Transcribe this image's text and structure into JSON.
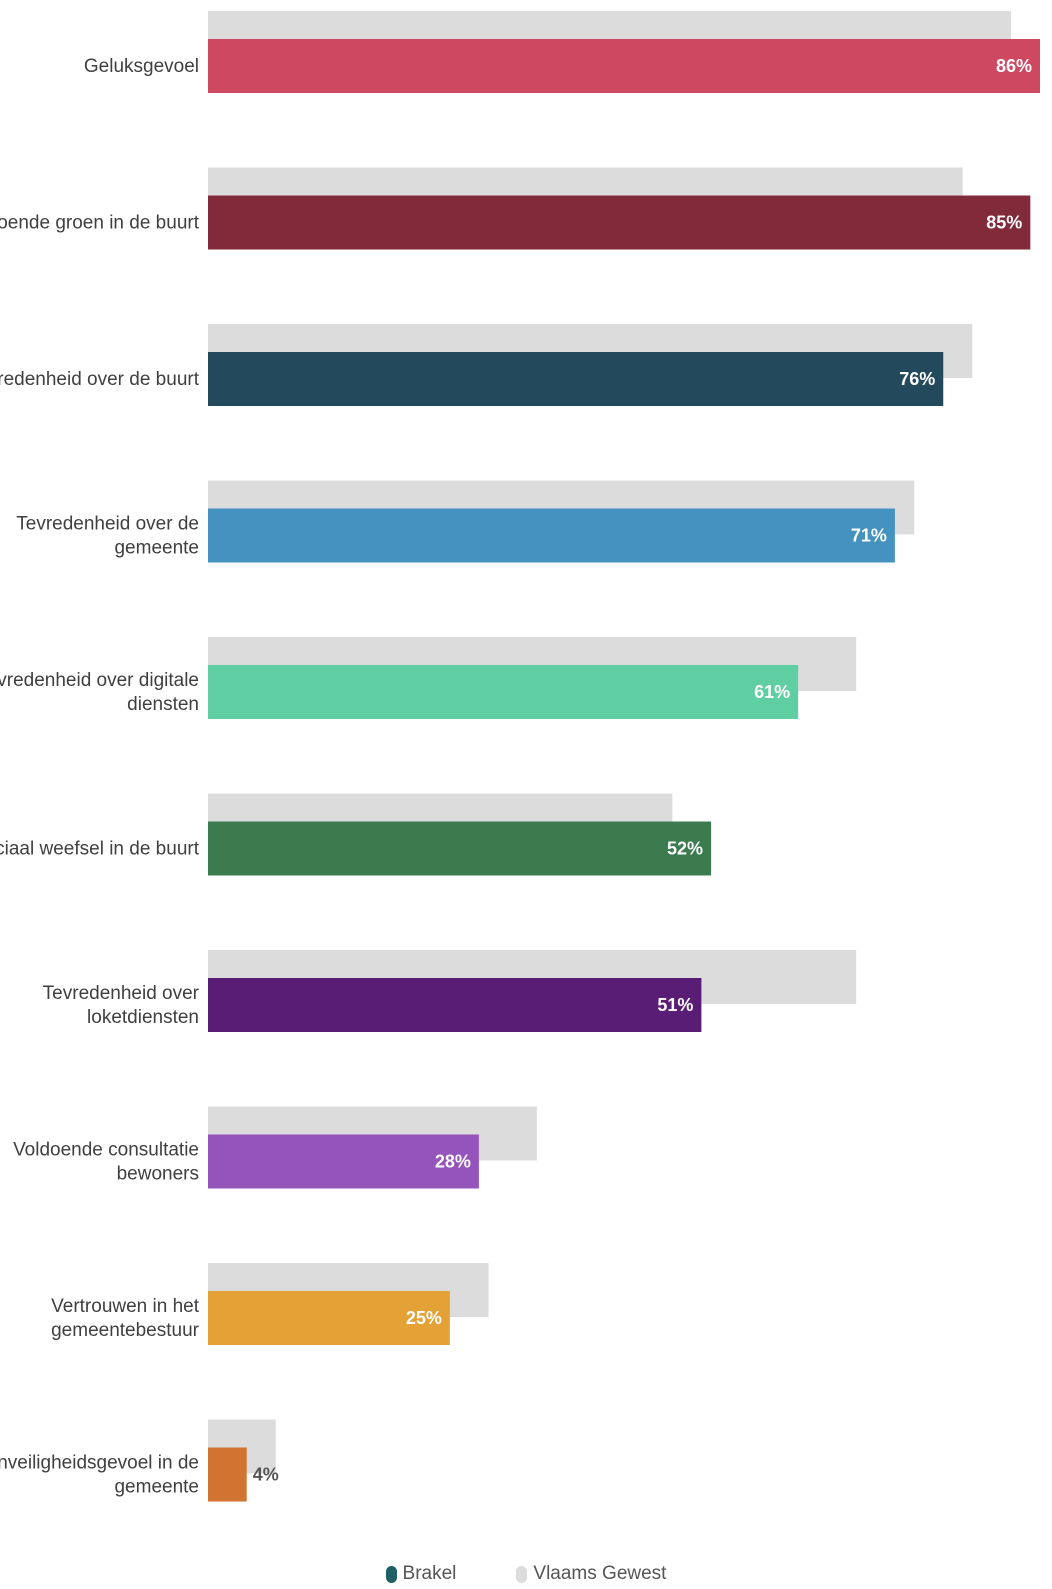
{
  "chart_data": {
    "type": "bar",
    "orientation": "horizontal",
    "categories": [
      "Geluksgevoel",
      "Voldoende groen in de buurt",
      "Tevredenheid over de buurt",
      "Tevredenheid over de gemeente",
      "Tevredenheid over digitale diensten",
      "Sociaal weefsel in de buurt",
      "Tevredenheid over loketdiensten",
      "Voldoende consultatie bewoners",
      "Vertrouwen in het gemeentebestuur",
      "Onveiligheidsgevoel in de gemeente"
    ],
    "series": [
      {
        "name": "Brakel",
        "values": [
          86,
          85,
          76,
          71,
          61,
          52,
          51,
          28,
          25,
          4
        ],
        "value_labels": [
          "86%",
          "85%",
          "76%",
          "71%",
          "61%",
          "52%",
          "51%",
          "28%",
          "25%",
          "4%"
        ],
        "colors": [
          "#cf4861",
          "#812a3a",
          "#224a5c",
          "#4392c0",
          "#5fcea3",
          "#3b7b4d",
          "#5a1d75",
          "#9553bc",
          "#e3a136",
          "#d17331"
        ]
      },
      {
        "name": "Vlaams Gewest",
        "values": [
          83,
          78,
          79,
          73,
          67,
          48,
          67,
          34,
          29,
          7
        ],
        "color": "#dcdcdc"
      }
    ],
    "xlim": [
      0,
      86
    ],
    "grid": false,
    "legend_position": "bottom-center",
    "legend": [
      {
        "name": "Brakel",
        "color": "#1f5f66"
      },
      {
        "name": "Vlaams Gewest",
        "color": "#dcdcdc"
      }
    ]
  }
}
